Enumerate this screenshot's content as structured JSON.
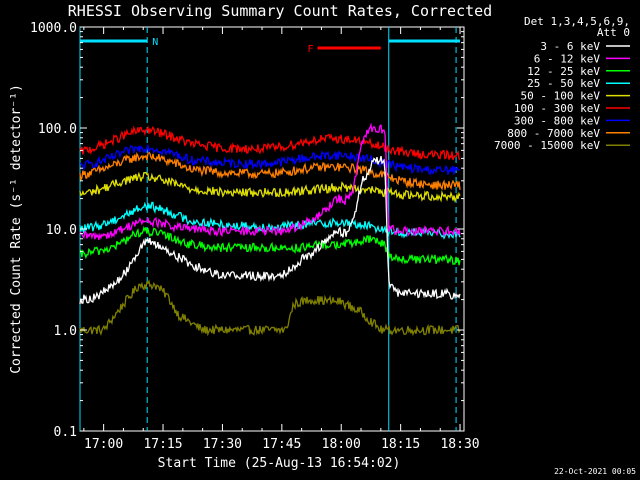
{
  "chart_data": {
    "type": "line",
    "title": "RHESSI Observing Summary Count Rates, Corrected",
    "xlabel": "Start Time (25-Aug-13 16:54:02)",
    "ylabel": "Corrected Count Rate (s⁻¹ detector⁻¹)",
    "yscale": "log",
    "ylim": [
      0.1,
      1000.0
    ],
    "xlim": [
      "16:54:02",
      "18:31:00"
    ],
    "yticks": [
      "0.1",
      "1.0",
      "10.0",
      "100.0",
      "1000.0"
    ],
    "xticks": [
      "17:00",
      "17:15",
      "17:30",
      "17:45",
      "18:00",
      "18:15",
      "18:30"
    ],
    "grid": false,
    "legend_position": "right",
    "legend_header": [
      "Det 1,3,4,5,6,9,",
      "Att 0"
    ],
    "footer_date": "22-Oct-2021 00:05",
    "night_bars": [
      {
        "label": "N",
        "start": "16:54:02",
        "end": "17:11",
        "color": "#00e0ff"
      },
      {
        "label": "",
        "start": "18:12",
        "end": "18:30",
        "color": "#00e0ff"
      }
    ],
    "flare_bar": {
      "label": "F",
      "start": "17:54",
      "end": "18:10",
      "color": "#ff0000"
    },
    "x_boundaries": [
      "16:54:02",
      "17:11",
      "18:12",
      "18:29"
    ],
    "series": [
      {
        "name": "3 - 6 keV",
        "color": "#ffffff",
        "points": [
          [
            "16:54",
            2
          ],
          [
            "16:58",
            2.1
          ],
          [
            "17:02",
            2.7
          ],
          [
            "17:05",
            3.5
          ],
          [
            "17:08",
            5.5
          ],
          [
            "17:10",
            7
          ],
          [
            "17:12",
            7.5
          ],
          [
            "17:15",
            6.5
          ],
          [
            "17:18",
            5.5
          ],
          [
            "17:20",
            5
          ],
          [
            "17:22",
            4.5
          ],
          [
            "17:25",
            4
          ],
          [
            "17:30",
            3.5
          ],
          [
            "17:35",
            3.5
          ],
          [
            "17:40",
            3.4
          ],
          [
            "17:45",
            3.5
          ],
          [
            "17:50",
            5
          ],
          [
            "17:53",
            6
          ],
          [
            "17:56",
            7.5
          ],
          [
            "17:59",
            9.5
          ],
          [
            "18:01",
            9
          ],
          [
            "18:03",
            12
          ],
          [
            "18:05",
            28
          ],
          [
            "18:08",
            45
          ],
          [
            "18:10",
            50
          ],
          [
            "18:11",
            45
          ],
          [
            "18:12",
            3
          ],
          [
            "18:14",
            2.3
          ],
          [
            "18:20",
            2.3
          ],
          [
            "18:25",
            2.3
          ],
          [
            "18:30",
            2.2
          ]
        ]
      },
      {
        "name": "6 - 12 keV",
        "color": "#ff00ff",
        "points": [
          [
            "16:54",
            8.5
          ],
          [
            "16:58",
            8.5
          ],
          [
            "17:02",
            9
          ],
          [
            "17:05",
            10
          ],
          [
            "17:08",
            11.5
          ],
          [
            "17:11",
            12
          ],
          [
            "17:14",
            11.5
          ],
          [
            "17:18",
            10.5
          ],
          [
            "17:22",
            10
          ],
          [
            "17:30",
            9.5
          ],
          [
            "17:40",
            9.5
          ],
          [
            "17:45",
            9.5
          ],
          [
            "17:50",
            11
          ],
          [
            "17:54",
            13
          ],
          [
            "17:57",
            17
          ],
          [
            "17:59",
            20
          ],
          [
            "18:01",
            19
          ],
          [
            "18:03",
            25
          ],
          [
            "18:05",
            70
          ],
          [
            "18:07",
            100
          ],
          [
            "18:09",
            95
          ],
          [
            "18:11",
            100
          ],
          [
            "18:12",
            10
          ],
          [
            "18:15",
            9.5
          ],
          [
            "18:20",
            9.5
          ],
          [
            "18:25",
            9.5
          ],
          [
            "18:30",
            9.5
          ]
        ]
      },
      {
        "name": "12 - 25 keV",
        "color": "#00ff00",
        "points": [
          [
            "16:54",
            5.5
          ],
          [
            "16:58",
            6
          ],
          [
            "17:02",
            6.5
          ],
          [
            "17:05",
            7.5
          ],
          [
            "17:08",
            9
          ],
          [
            "17:11",
            9.5
          ],
          [
            "17:14",
            9
          ],
          [
            "17:18",
            8
          ],
          [
            "17:22",
            7
          ],
          [
            "17:30",
            6.5
          ],
          [
            "17:40",
            6.5
          ],
          [
            "17:45",
            6.5
          ],
          [
            "17:50",
            6.5
          ],
          [
            "17:55",
            7
          ],
          [
            "18:00",
            7
          ],
          [
            "18:05",
            7.5
          ],
          [
            "18:08",
            8
          ],
          [
            "18:11",
            7
          ],
          [
            "18:12",
            5.5
          ],
          [
            "18:15",
            5
          ],
          [
            "18:20",
            5
          ],
          [
            "18:25",
            5
          ],
          [
            "18:30",
            4.8
          ]
        ]
      },
      {
        "name": "25 - 50 keV",
        "color": "#00ffff",
        "points": [
          [
            "16:54",
            10
          ],
          [
            "16:58",
            10.5
          ],
          [
            "17:02",
            12
          ],
          [
            "17:05",
            13.5
          ],
          [
            "17:08",
            15.5
          ],
          [
            "17:11",
            17
          ],
          [
            "17:14",
            16
          ],
          [
            "17:18",
            14
          ],
          [
            "17:22",
            12
          ],
          [
            "17:30",
            11
          ],
          [
            "17:40",
            10.5
          ],
          [
            "17:45",
            10.5
          ],
          [
            "17:50",
            11
          ],
          [
            "17:55",
            11.5
          ],
          [
            "18:00",
            11.5
          ],
          [
            "18:05",
            11
          ],
          [
            "18:08",
            10.5
          ],
          [
            "18:11",
            10
          ],
          [
            "18:12",
            9.5
          ],
          [
            "18:15",
            9.2
          ],
          [
            "18:20",
            9.2
          ],
          [
            "18:25",
            9
          ],
          [
            "18:30",
            9
          ]
        ]
      },
      {
        "name": "50 - 100 keV",
        "color": "#e0e000",
        "points": [
          [
            "16:54",
            22
          ],
          [
            "16:58",
            24
          ],
          [
            "17:02",
            27
          ],
          [
            "17:05",
            30
          ],
          [
            "17:08",
            32
          ],
          [
            "17:11",
            33
          ],
          [
            "17:14",
            31
          ],
          [
            "17:18",
            28
          ],
          [
            "17:22",
            25
          ],
          [
            "17:30",
            23
          ],
          [
            "17:40",
            23
          ],
          [
            "17:45",
            23
          ],
          [
            "17:50",
            24
          ],
          [
            "17:55",
            25
          ],
          [
            "18:00",
            26
          ],
          [
            "18:05",
            25
          ],
          [
            "18:08",
            24
          ],
          [
            "18:11",
            23
          ],
          [
            "18:15",
            22
          ],
          [
            "18:20",
            21.5
          ],
          [
            "18:25",
            21
          ],
          [
            "18:30",
            21
          ]
        ]
      },
      {
        "name": "100 - 300 keV",
        "color": "#ff0000",
        "points": [
          [
            "16:54",
            58
          ],
          [
            "16:58",
            64
          ],
          [
            "17:02",
            74
          ],
          [
            "17:05",
            84
          ],
          [
            "17:08",
            92
          ],
          [
            "17:11",
            96
          ],
          [
            "17:14",
            90
          ],
          [
            "17:18",
            80
          ],
          [
            "17:22",
            70
          ],
          [
            "17:30",
            63
          ],
          [
            "17:40",
            62
          ],
          [
            "17:45",
            65
          ],
          [
            "17:50",
            72
          ],
          [
            "17:55",
            78
          ],
          [
            "18:00",
            78
          ],
          [
            "18:05",
            74
          ],
          [
            "18:08",
            68
          ],
          [
            "18:11",
            64
          ],
          [
            "18:15",
            58
          ],
          [
            "18:20",
            55
          ],
          [
            "18:25",
            54
          ],
          [
            "18:30",
            53
          ]
        ]
      },
      {
        "name": "300 - 800 keV",
        "color": "#0000ff",
        "points": [
          [
            "16:54",
            42
          ],
          [
            "16:58",
            45
          ],
          [
            "17:02",
            51
          ],
          [
            "17:05",
            57
          ],
          [
            "17:08",
            62
          ],
          [
            "17:11",
            65
          ],
          [
            "17:14",
            61
          ],
          [
            "17:18",
            55
          ],
          [
            "17:22",
            48
          ],
          [
            "17:30",
            45
          ],
          [
            "17:40",
            44
          ],
          [
            "17:45",
            46
          ],
          [
            "17:50",
            50
          ],
          [
            "17:55",
            53
          ],
          [
            "18:00",
            54
          ],
          [
            "18:05",
            51
          ],
          [
            "18:08",
            48
          ],
          [
            "18:11",
            45
          ],
          [
            "18:15",
            41
          ],
          [
            "18:20",
            39
          ],
          [
            "18:25",
            38
          ],
          [
            "18:30",
            38
          ]
        ]
      },
      {
        "name": "800 - 7000 keV",
        "color": "#ff8000",
        "points": [
          [
            "16:54",
            34
          ],
          [
            "16:58",
            37
          ],
          [
            "17:02",
            42
          ],
          [
            "17:05",
            47
          ],
          [
            "17:08",
            51
          ],
          [
            "17:11",
            53
          ],
          [
            "17:14",
            50
          ],
          [
            "17:18",
            45
          ],
          [
            "17:22",
            39
          ],
          [
            "17:30",
            36
          ],
          [
            "17:40",
            35
          ],
          [
            "17:45",
            36
          ],
          [
            "17:50",
            39
          ],
          [
            "17:55",
            41
          ],
          [
            "18:00",
            41
          ],
          [
            "18:05",
            39
          ],
          [
            "18:08",
            36
          ],
          [
            "18:11",
            34
          ],
          [
            "18:15",
            30
          ],
          [
            "18:20",
            28
          ],
          [
            "18:25",
            27
          ],
          [
            "18:30",
            27
          ]
        ]
      },
      {
        "name": "7000 - 15000 keV",
        "color": "#808000",
        "points": [
          [
            "16:54",
            1
          ],
          [
            "17:00",
            1
          ],
          [
            "17:05",
            1.8
          ],
          [
            "17:09",
            2.8
          ],
          [
            "17:13",
            2.8
          ],
          [
            "17:16",
            2.2
          ],
          [
            "17:19",
            1.4
          ],
          [
            "17:25",
            1
          ],
          [
            "17:35",
            1
          ],
          [
            "17:46",
            1
          ],
          [
            "17:48",
            1.8
          ],
          [
            "17:52",
            2
          ],
          [
            "18:00",
            1.9
          ],
          [
            "18:05",
            1.5
          ],
          [
            "18:10",
            1
          ],
          [
            "18:20",
            1
          ],
          [
            "18:30",
            1
          ]
        ]
      }
    ]
  }
}
